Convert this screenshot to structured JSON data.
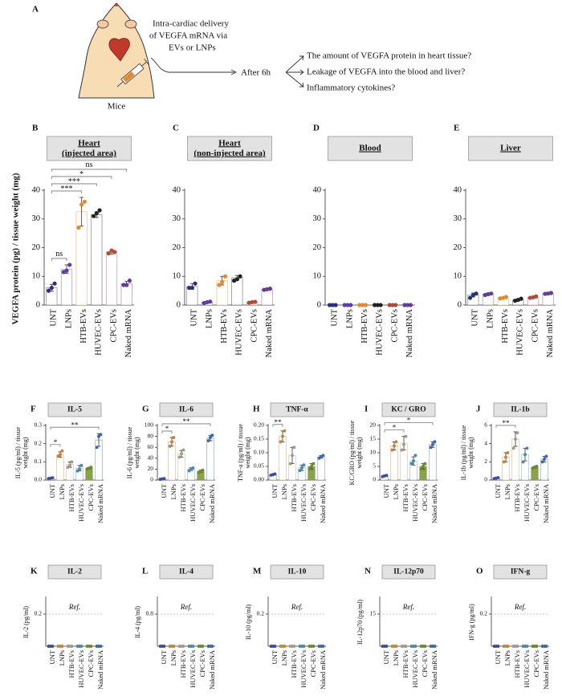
{
  "figure": {
    "panel": "A",
    "delivery_lines": [
      "Intra-cardiac delivery",
      "of VEGFA mRNA via",
      "EVs or LNPs"
    ],
    "subject": "Mice",
    "timepoint": "After 6h",
    "questions": [
      "The amount of VEGFA protein in heart tissue?",
      "Leakage of VEGFA into the blood and liver?",
      "Inflammatory cytokines?"
    ],
    "y_label": "VEGFA protein (pg) / tissue weight (mg)"
  },
  "chart_data": [
    {
      "type": "bar",
      "panel": "B",
      "title": [
        "Heart",
        "(injected area)"
      ],
      "categories": [
        "UNT",
        "LNPs",
        "HTB-EVs",
        "HUVEC-EVs",
        "CPC-EVs",
        "Naked mRNA"
      ],
      "values": [
        6,
        12.5,
        32.5,
        31.5,
        18.5,
        7.5
      ],
      "errors": [
        1.2,
        1.5,
        5,
        1,
        0.7,
        0.8
      ],
      "points": [
        [
          5,
          6,
          7.5
        ],
        [
          11.5,
          12,
          14
        ],
        [
          27,
          35,
          36
        ],
        [
          31,
          32,
          33
        ],
        [
          18,
          19,
          18.5
        ],
        [
          7,
          7,
          8.5
        ]
      ],
      "colors": [
        "#2e2e7a",
        "#5b3fa6",
        "#e8882e",
        "#222222",
        "#b04a3a",
        "#6a3a9a"
      ],
      "ylim": [
        0,
        40
      ],
      "yticks": [
        0,
        10,
        20,
        30,
        40
      ],
      "significance": [
        {
          "pair": [
            "UNT",
            "LNPs"
          ],
          "label": "ns"
        },
        {
          "pair": [
            "UNT",
            "HTB-EVs"
          ],
          "label": "***"
        },
        {
          "pair": [
            "UNT",
            "HUVEC-EVs"
          ],
          "label": "***"
        },
        {
          "pair": [
            "UNT",
            "CPC-EVs"
          ],
          "label": "*"
        },
        {
          "pair": [
            "UNT",
            "Naked mRNA"
          ],
          "label": "ns"
        }
      ]
    },
    {
      "type": "bar",
      "panel": "C",
      "title": [
        "Heart",
        "(non-injected area)"
      ],
      "categories": [
        "UNT",
        "LNPs",
        "HTB-EVs",
        "HUVEC-EVs",
        "CPC-EVs",
        "Naked mRNA"
      ],
      "values": [
        6.5,
        1,
        8.5,
        9.5,
        1,
        5.5
      ],
      "errors": [
        1,
        0.3,
        1.5,
        0.8,
        0.2,
        0.2
      ],
      "points": [
        [
          6,
          6,
          7.5
        ],
        [
          0.7,
          1,
          1.2
        ],
        [
          7,
          8,
          10
        ],
        [
          8.5,
          9,
          10
        ],
        [
          0.8,
          1,
          1.1
        ],
        [
          5.3,
          5.5,
          5.7
        ]
      ],
      "colors": [
        "#2e2e7a",
        "#5b3fa6",
        "#e8882e",
        "#222222",
        "#b04a3a",
        "#6a3a9a"
      ],
      "ylim": [
        0,
        40
      ],
      "yticks": [
        0,
        10,
        20,
        30,
        40
      ]
    },
    {
      "type": "bar",
      "panel": "D",
      "title": [
        "Blood"
      ],
      "categories": [
        "UNT",
        "LNPs",
        "HTB-EVs",
        "HUVEC-EVs",
        "CPC-EVs",
        "Naked mRNA"
      ],
      "values": [
        0,
        0,
        0,
        0,
        0,
        0
      ],
      "errors": [
        0,
        0,
        0,
        0,
        0,
        0
      ],
      "points": [
        [
          0,
          0,
          0
        ],
        [
          0,
          0,
          0
        ],
        [
          0,
          0,
          0
        ],
        [
          0,
          0,
          0
        ],
        [
          0,
          0,
          0
        ],
        [
          0,
          0,
          0
        ]
      ],
      "colors": [
        "#2e2e7a",
        "#5b3fa6",
        "#e8882e",
        "#222222",
        "#b04a3a",
        "#6a3a9a"
      ],
      "ylim": [
        0,
        40
      ],
      "yticks": [
        0,
        10,
        20,
        30,
        40
      ]
    },
    {
      "type": "bar",
      "panel": "E",
      "title": [
        "Liver"
      ],
      "categories": [
        "UNT",
        "LNPs",
        "HTB-EVs",
        "HUVEC-EVs",
        "CPC-EVs",
        "Naked mRNA"
      ],
      "values": [
        3.5,
        3.8,
        2.5,
        1.8,
        2.7,
        4
      ],
      "errors": [
        0.7,
        0.3,
        0.3,
        0.3,
        0.3,
        0.2
      ],
      "points": [
        [
          2.5,
          3.5,
          4
        ],
        [
          3.5,
          3.8,
          4
        ],
        [
          2.3,
          2.5,
          2.8
        ],
        [
          1.5,
          1.8,
          2.2
        ],
        [
          2.5,
          2.7,
          3
        ],
        [
          3.9,
          4,
          4.2
        ]
      ],
      "colors": [
        "#2e2e7a",
        "#5b3fa6",
        "#e8882e",
        "#222222",
        "#b04a3a",
        "#6a3a9a"
      ],
      "ylim": [
        0,
        40
      ],
      "yticks": [
        0,
        10,
        20,
        30,
        40
      ]
    },
    {
      "type": "bar",
      "panel": "F",
      "title": [
        "IL-5"
      ],
      "y_label": [
        "IL-5 (pg/ml) / tissue",
        "weight (mg)"
      ],
      "categories": [
        "UNT",
        "LNPs",
        "HTB-EVs",
        "HUVEC-EVs",
        "CPC-EVs",
        "Naked mRNA"
      ],
      "values": [
        0.01,
        0.14,
        0.085,
        0.065,
        0.065,
        0.22
      ],
      "errors": [
        0.003,
        0.015,
        0.015,
        0.015,
        0.005,
        0.035
      ],
      "points": [
        [
          0.008,
          0.01,
          0.012
        ],
        [
          0.13,
          0.14,
          0.16
        ],
        [
          0.07,
          0.08,
          0.1
        ],
        [
          0.05,
          0.06,
          0.08
        ],
        [
          0.06,
          0.065,
          0.07
        ],
        [
          0.18,
          0.24,
          0.25
        ]
      ],
      "colors": [
        "#3a4fa0",
        "#c8843a",
        "#a89a88",
        "#4a8ab0",
        "#6a8a2e",
        "#3a6ab0"
      ],
      "bar_fills": [
        "#ffffff",
        "#ffffff",
        "#ffffff",
        "#ffffff",
        "#8aa34a",
        "#ffffff"
      ],
      "ylim": [
        0,
        0.3
      ],
      "yticks": [
        {
          "value": 0,
          "label": "0.0"
        },
        0.1,
        0.2,
        0.3
      ],
      "significance": [
        {
          "pair": [
            "UNT",
            "LNPs"
          ],
          "label": "*"
        },
        {
          "pair": [
            "UNT",
            "Naked mRNA"
          ],
          "label": "**"
        }
      ]
    },
    {
      "type": "bar",
      "panel": "G",
      "title": [
        "IL-6"
      ],
      "y_label": [
        "IL-6 (pg/ml) / tissue",
        "weight (mg)"
      ],
      "categories": [
        "UNT",
        "LNPs",
        "HTB-EVs",
        "HUVEC-EVs",
        "CPC-EVs",
        "Naked mRNA"
      ],
      "values": [
        2,
        70,
        48,
        20,
        16,
        77
      ],
      "errors": [
        0.5,
        8,
        6,
        2.5,
        2,
        5
      ],
      "points": [
        [
          1.5,
          2,
          2.5
        ],
        [
          62,
          70,
          78
        ],
        [
          42,
          48,
          55
        ],
        [
          17,
          20,
          22
        ],
        [
          14,
          16,
          18
        ],
        [
          72,
          78,
          82
        ]
      ],
      "colors": [
        "#3a4fa0",
        "#c8843a",
        "#a89a88",
        "#4a8ab0",
        "#6a8a2e",
        "#3a6ab0"
      ],
      "bar_fills": [
        "#ffffff",
        "#ffffff",
        "#ffffff",
        "#ffffff",
        "#8aa34a",
        "#ffffff"
      ],
      "ylim": [
        0,
        100
      ],
      "yticks": [
        0,
        20,
        40,
        60,
        80,
        100
      ],
      "significance": [
        {
          "pair": [
            "UNT",
            "LNPs"
          ],
          "label": "*"
        },
        {
          "pair": [
            "UNT",
            "Naked mRNA"
          ],
          "label": "**"
        }
      ]
    },
    {
      "type": "bar",
      "panel": "H",
      "title": [
        "TNF-α"
      ],
      "y_label": [
        "TNF-a (pg/ml) / tissue",
        "weight (mg)"
      ],
      "categories": [
        "UNT",
        "LNPs",
        "HTB-EVs",
        "HUVEC-EVs",
        "CPC-EVs",
        "Naked mRNA"
      ],
      "values": [
        0.02,
        0.16,
        0.09,
        0.045,
        0.05,
        0.085
      ],
      "errors": [
        0.002,
        0.02,
        0.03,
        0.01,
        0.01,
        0.005
      ],
      "points": [
        [
          0.018,
          0.02,
          0.022
        ],
        [
          0.14,
          0.16,
          0.18
        ],
        [
          0.06,
          0.09,
          0.12
        ],
        [
          0.035,
          0.045,
          0.055
        ],
        [
          0.04,
          0.05,
          0.06
        ],
        [
          0.08,
          0.085,
          0.09
        ]
      ],
      "colors": [
        "#3a4fa0",
        "#c8843a",
        "#a89a88",
        "#4a8ab0",
        "#6a8a2e",
        "#3a6ab0"
      ],
      "bar_fills": [
        "#ffffff",
        "#ffffff",
        "#ffffff",
        "#ffffff",
        "#8aa34a",
        "#ffffff"
      ],
      "ylim": [
        0,
        0.2
      ],
      "yticks": [
        {
          "value": 0,
          "label": "0.00"
        },
        0.05,
        {
          "value": 0.1,
          "label": "0.10"
        },
        0.15,
        {
          "value": 0.2,
          "label": "0.20"
        }
      ],
      "significance": [
        {
          "pair": [
            "UNT",
            "LNPs"
          ],
          "label": "**"
        }
      ]
    },
    {
      "type": "bar",
      "panel": "I",
      "title": [
        "KC / GRO"
      ],
      "y_label": [
        "KC/GRO (pg/ml) / tissue",
        "weight (mg)"
      ],
      "categories": [
        "UNT",
        "LNPs",
        "HTB-EVs",
        "HUVEC-EVs",
        "CPC-EVs",
        "Naked mRNA"
      ],
      "values": [
        1.5,
        12.5,
        13.5,
        7,
        5,
        13
      ],
      "errors": [
        0.2,
        1.5,
        2.5,
        1.5,
        1,
        1
      ],
      "points": [
        [
          1.3,
          1.5,
          1.7
        ],
        [
          11,
          12.5,
          14
        ],
        [
          11,
          13,
          16
        ],
        [
          6,
          7,
          9
        ],
        [
          4,
          5,
          6
        ],
        [
          12,
          13,
          14
        ]
      ],
      "colors": [
        "#3a4fa0",
        "#c8843a",
        "#a89a88",
        "#4a8ab0",
        "#6a8a2e",
        "#3a6ab0"
      ],
      "bar_fills": [
        "#ffffff",
        "#ffffff",
        "#ffffff",
        "#ffffff",
        "#8aa34a",
        "#ffffff"
      ],
      "ylim": [
        0,
        20
      ],
      "yticks": [
        0,
        5,
        10,
        15,
        20
      ],
      "significance": [
        {
          "pair": [
            "UNT",
            "HTB-EVs"
          ],
          "label": "*"
        },
        {
          "pair": [
            "UNT",
            "Naked mRNA"
          ],
          "label": "*"
        }
      ]
    },
    {
      "type": "bar",
      "panel": "J",
      "title": [
        "IL-1b"
      ],
      "y_label": [
        "IL-1b (pg/ml) / tissue",
        "weight (mg)"
      ],
      "categories": [
        "UNT",
        "LNPs",
        "HTB-EVs",
        "HUVEC-EVs",
        "CPC-EVs",
        "Naked mRNA"
      ],
      "values": [
        0.2,
        2.5,
        4.5,
        2.8,
        1.4,
        2.3
      ],
      "errors": [
        0.05,
        0.5,
        0.8,
        0.7,
        0.1,
        0.3
      ],
      "points": [
        [
          0.15,
          0.2,
          0.25
        ],
        [
          2,
          2.5,
          3
        ],
        [
          3.5,
          4.5,
          5.2
        ],
        [
          2,
          2.8,
          3.5
        ],
        [
          1.3,
          1.4,
          1.5
        ],
        [
          2,
          2.3,
          2.6
        ]
      ],
      "colors": [
        "#3a4fa0",
        "#c8843a",
        "#a89a88",
        "#4a8ab0",
        "#6a8a2e",
        "#3a6ab0"
      ],
      "bar_fills": [
        "#ffffff",
        "#ffffff",
        "#ffffff",
        "#ffffff",
        "#8aa34a",
        "#ffffff"
      ],
      "ylim": [
        0,
        6
      ],
      "yticks": [
        0,
        2,
        4,
        6
      ],
      "significance": [
        {
          "pair": [
            "UNT",
            "HTB-EVs"
          ],
          "label": "**"
        }
      ]
    },
    {
      "type": "bar",
      "panel": "K",
      "title": [
        "IL-2"
      ],
      "y_label": [
        "IL-2  (pg/ml)"
      ],
      "categories": [
        "UNT",
        "LNPs",
        "HTB-EVs",
        "HUVEC-EVs",
        "CPC-EVs",
        "Naked mRNA"
      ],
      "values": [
        0,
        0,
        0,
        0,
        0,
        0
      ],
      "errors": [
        0,
        0,
        0,
        0,
        0,
        0
      ],
      "points": [
        [
          0,
          0,
          0
        ],
        [
          0,
          0,
          0
        ],
        [
          0,
          0,
          0
        ],
        [
          0,
          0,
          0
        ],
        [
          0,
          0,
          0
        ],
        [
          0,
          0,
          0
        ]
      ],
      "colors": [
        "#3a4fa0",
        "#c8843a",
        "#a89a88",
        "#4a8ab0",
        "#6a8a2e",
        "#3a6ab0"
      ],
      "ylim": [
        0,
        0.3
      ],
      "yticks": [
        0.2
      ],
      "reference": {
        "value": 0.2,
        "label": "Ref."
      }
    },
    {
      "type": "bar",
      "panel": "L",
      "title": [
        "IL-4"
      ],
      "y_label": [
        "IL-4  (pg/ml)"
      ],
      "categories": [
        "UNT",
        "LNPs",
        "HTB-EVs",
        "HUVEC-EVs",
        "CPC-EVs",
        "Naked mRNA"
      ],
      "values": [
        0,
        0,
        0,
        0,
        0,
        0
      ],
      "errors": [
        0,
        0,
        0,
        0,
        0,
        0
      ],
      "points": [
        [
          0,
          0,
          0
        ],
        [
          0,
          0,
          0
        ],
        [
          0,
          0,
          0
        ],
        [
          0,
          0,
          0
        ],
        [
          0,
          0,
          0
        ],
        [
          0,
          0,
          0
        ]
      ],
      "colors": [
        "#3a4fa0",
        "#c8843a",
        "#a89a88",
        "#4a8ab0",
        "#6a8a2e",
        "#3a6ab0"
      ],
      "ylim": [
        0,
        1.2
      ],
      "yticks": [
        0.8
      ],
      "reference": {
        "value": 0.8,
        "label": "Ref."
      }
    },
    {
      "type": "bar",
      "panel": "M",
      "title": [
        "IL-10"
      ],
      "y_label": [
        "IL-10  (pg/ml)"
      ],
      "categories": [
        "UNT",
        "LNPs",
        "HTB-EVs",
        "HUVEC-EVs",
        "CPC-EVs",
        "Naked mRNA"
      ],
      "values": [
        0,
        0,
        0,
        0,
        0,
        0
      ],
      "errors": [
        0,
        0,
        0,
        0,
        0,
        0
      ],
      "points": [
        [
          0,
          0,
          0
        ],
        [
          0,
          0,
          0
        ],
        [
          0,
          0,
          0
        ],
        [
          0,
          0,
          0
        ],
        [
          0,
          0,
          0
        ],
        [
          0,
          0,
          0
        ]
      ],
      "colors": [
        "#3a4fa0",
        "#c8843a",
        "#a89a88",
        "#4a8ab0",
        "#6a8a2e",
        "#3a6ab0"
      ],
      "ylim": [
        0,
        0.3
      ],
      "yticks": [
        0.2
      ],
      "reference": {
        "value": 0.2,
        "label": "Ref."
      }
    },
    {
      "type": "bar",
      "panel": "N",
      "title": [
        "IL-12p70"
      ],
      "y_label": [
        "IL-12p70  (pg/ml)"
      ],
      "categories": [
        "UNT",
        "LNPs",
        "HTB-EVs",
        "HUVEC-EVs",
        "CPC-EVs",
        "Naked mRNA"
      ],
      "values": [
        0,
        0,
        0,
        0,
        0,
        0
      ],
      "errors": [
        0,
        0,
        0,
        0,
        0,
        0
      ],
      "points": [
        [
          0,
          0,
          0
        ],
        [
          0,
          0,
          0
        ],
        [
          0,
          0,
          0
        ],
        [
          0,
          0,
          0
        ],
        [
          0,
          0,
          0
        ],
        [
          0,
          0,
          0
        ]
      ],
      "colors": [
        "#3a4fa0",
        "#c8843a",
        "#a89a88",
        "#4a8ab0",
        "#6a8a2e",
        "#3a6ab0"
      ],
      "ylim": [
        0,
        22.5
      ],
      "yticks": [
        15
      ],
      "reference": {
        "value": 15,
        "label": "Ref."
      }
    },
    {
      "type": "bar",
      "panel": "O",
      "title": [
        "IFN-g"
      ],
      "y_label": [
        "IFN-g  (pg/ml)"
      ],
      "categories": [
        "UNT",
        "LNPs",
        "HTB-EVs",
        "HUVEC-EVs",
        "CPC-EVs",
        "Naked mRNA"
      ],
      "values": [
        0,
        0,
        0,
        0,
        0,
        0
      ],
      "errors": [
        0,
        0,
        0,
        0,
        0,
        0
      ],
      "points": [
        [
          0,
          0,
          0
        ],
        [
          0,
          0,
          0
        ],
        [
          0,
          0,
          0
        ],
        [
          0,
          0,
          0
        ],
        [
          0,
          0,
          0
        ],
        [
          0,
          0,
          0
        ]
      ],
      "colors": [
        "#3a4fa0",
        "#c8843a",
        "#a89a88",
        "#4a8ab0",
        "#6a8a2e",
        "#3a6ab0"
      ],
      "ylim": [
        0,
        0.3
      ],
      "yticks": [
        0.2
      ],
      "reference": {
        "value": 0.2,
        "label": "Ref."
      }
    }
  ]
}
